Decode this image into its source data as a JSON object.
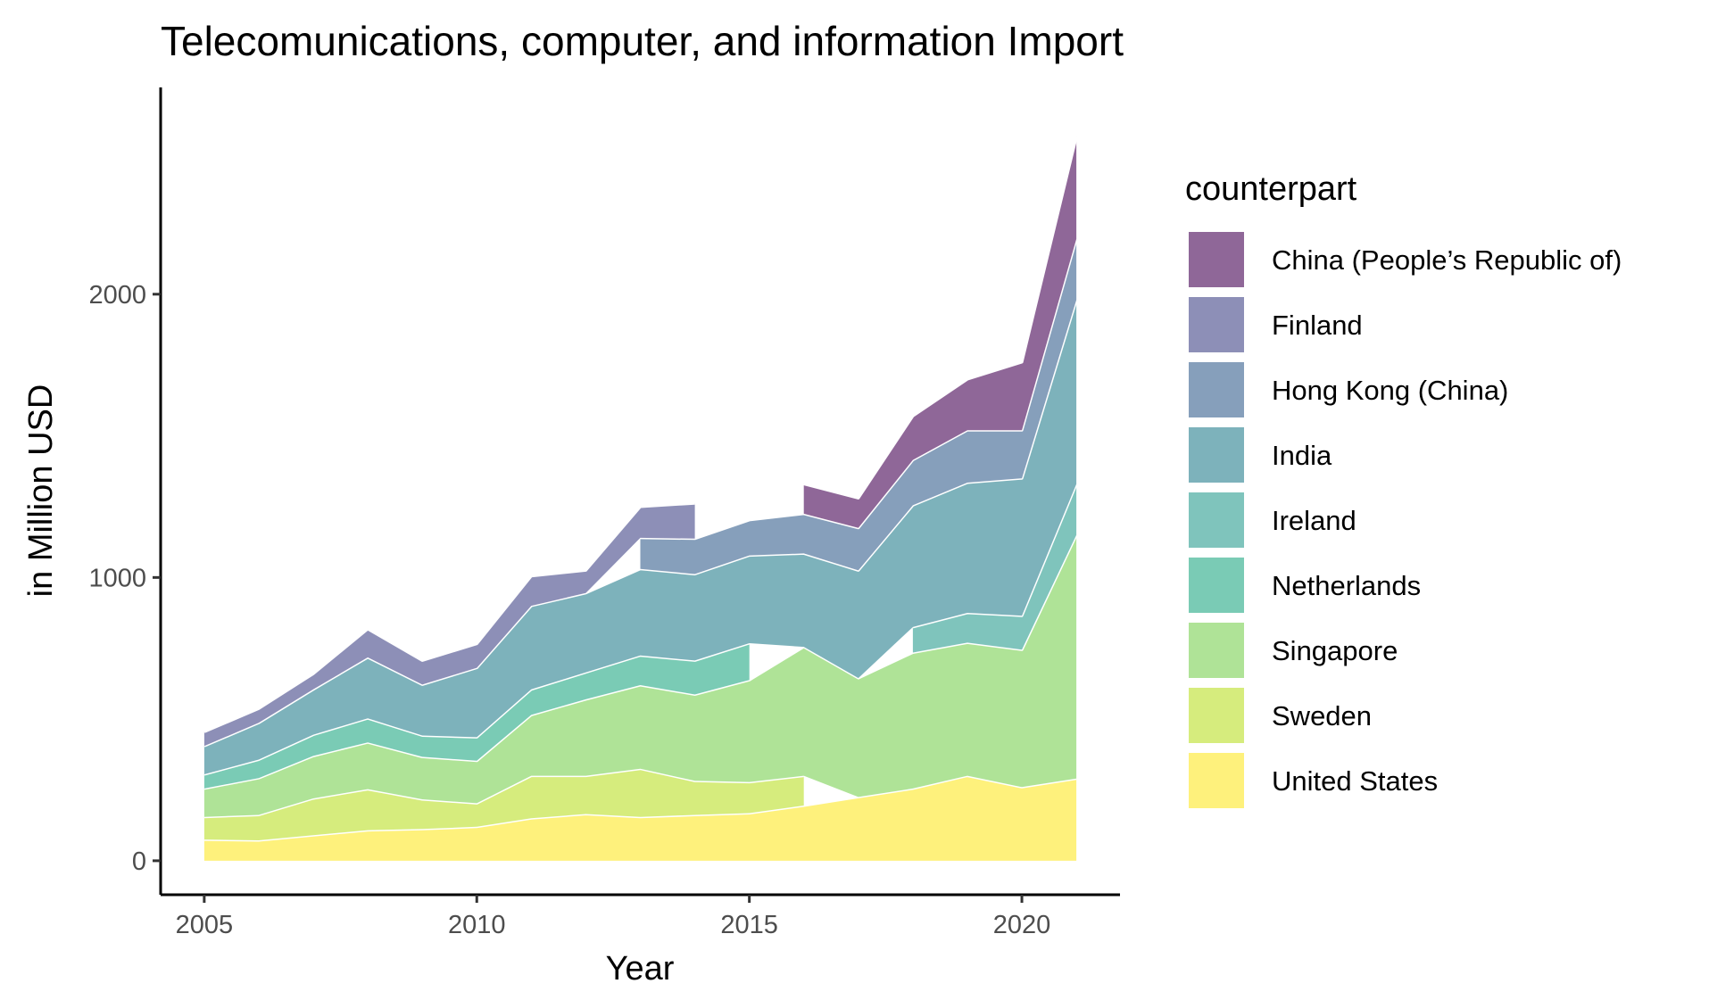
{
  "chart_data": {
    "type": "area",
    "stacked": true,
    "title": "Telecomunications, computer, and information Import",
    "xlabel": "Year",
    "ylabel": "in Million USD",
    "xlim": [
      2004.2,
      2021.8
    ],
    "ylim": [
      -120,
      2730
    ],
    "x_ticks": [
      2005,
      2010,
      2015,
      2020
    ],
    "y_ticks": [
      0,
      1000,
      2000
    ],
    "grid": false,
    "legend": {
      "title": "counterpart",
      "position": "right"
    },
    "x": [
      2005,
      2006,
      2007,
      2008,
      2009,
      2010,
      2011,
      2012,
      2013,
      2014,
      2015,
      2016,
      2017,
      2018,
      2019,
      2020,
      2021
    ],
    "series": [
      {
        "name": "United States",
        "color": "#FDE725",
        "values": [
          75,
          72,
          90,
          108,
          112,
          120,
          150,
          165,
          155,
          162,
          168,
          195,
          225,
          255,
          300,
          260,
          290
        ]
      },
      {
        "name": "Sweden",
        "color": "#BBDF27",
        "values": [
          80,
          90,
          130,
          145,
          105,
          83,
          150,
          135,
          170,
          120,
          110,
          105,
          null,
          null,
          null,
          null,
          null
        ]
      },
      {
        "name": "Singapore",
        "color": "#7AD151",
        "values": [
          100,
          130,
          150,
          165,
          150,
          150,
          215,
          270,
          295,
          305,
          360,
          455,
          420,
          480,
          470,
          485,
          860
        ]
      },
      {
        "name": "Netherlands",
        "color": "#22A884",
        "values": [
          50,
          65,
          75,
          85,
          75,
          83,
          90,
          95,
          105,
          120,
          130,
          null,
          null,
          null,
          null,
          null,
          null
        ]
      },
      {
        "name": "Ireland",
        "color": "#2A9D8F",
        "values": [
          null,
          null,
          null,
          null,
          null,
          null,
          null,
          null,
          null,
          null,
          null,
          null,
          null,
          90,
          105,
          120,
          180
        ]
      },
      {
        "name": "India",
        "color": "#277F8E",
        "values": [
          100,
          130,
          160,
          215,
          180,
          245,
          295,
          280,
          305,
          305,
          310,
          330,
          380,
          430,
          460,
          485,
          650
        ]
      },
      {
        "name": "Hong Kong (China)",
        "color": "#355F8D",
        "values": [
          null,
          null,
          null,
          null,
          null,
          null,
          null,
          null,
          110,
          125,
          125,
          140,
          150,
          160,
          185,
          170,
          215
        ]
      },
      {
        "name": "Finland",
        "color": "#414487",
        "values": [
          50,
          50,
          55,
          100,
          85,
          85,
          105,
          80,
          110,
          125,
          null,
          null,
          null,
          null,
          null,
          null,
          null
        ]
      },
      {
        "name": "China (People’s Republic of)",
        "color": "#440154",
        "values": [
          null,
          null,
          null,
          null,
          null,
          null,
          null,
          null,
          null,
          null,
          null,
          105,
          105,
          155,
          180,
          240,
          360
        ]
      }
    ],
    "fill_opacity": 0.6,
    "legend_order": [
      "China (People’s Republic of)",
      "Finland",
      "Hong Kong (China)",
      "India",
      "Ireland",
      "Netherlands",
      "Singapore",
      "Sweden",
      "United States"
    ]
  }
}
